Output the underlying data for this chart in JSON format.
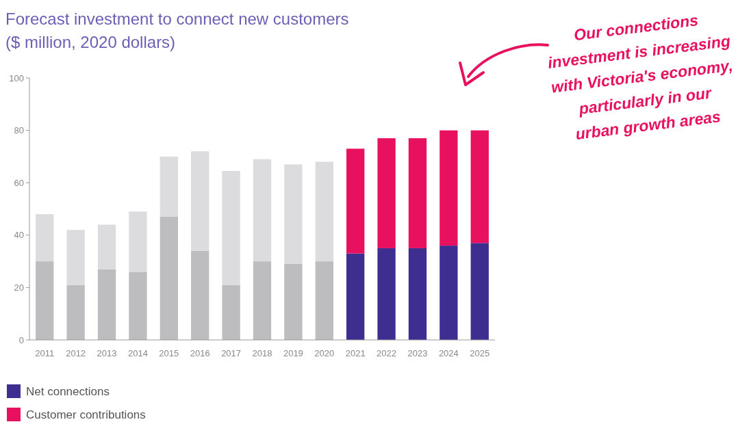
{
  "chart_data": {
    "type": "bar",
    "title": "Forecast investment to connect new customers",
    "subtitle": "($ million, 2020 dollars)",
    "categories": [
      "2011",
      "2012",
      "2013",
      "2014",
      "2015",
      "2016",
      "2017",
      "2018",
      "2019",
      "2020",
      "2021",
      "2022",
      "2023",
      "2024",
      "2025"
    ],
    "stacked": true,
    "series": [
      {
        "name": "Net connections",
        "color": "#3d2e8f",
        "values": [
          30,
          21,
          27,
          26,
          47,
          34,
          21,
          30,
          29,
          30,
          33,
          35,
          35,
          36,
          37
        ],
        "colors": [
          "#bdbdbf",
          "#bdbdbf",
          "#bdbdbf",
          "#bdbdbf",
          "#bdbdbf",
          "#bdbdbf",
          "#bdbdbf",
          "#bdbdbf",
          "#bdbdbf",
          "#bdbdbf",
          "#3d2e8f",
          "#3d2e8f",
          "#3d2e8f",
          "#3d2e8f",
          "#3d2e8f"
        ]
      },
      {
        "name": "Customer contributions",
        "color": "#e8115f",
        "values": [
          18,
          21,
          17,
          23,
          23,
          38,
          43.5,
          39,
          38,
          38,
          40,
          42,
          42,
          44,
          43
        ],
        "colors": [
          "#dcdcde",
          "#dcdcde",
          "#dcdcde",
          "#dcdcde",
          "#dcdcde",
          "#dcdcde",
          "#dcdcde",
          "#dcdcde",
          "#dcdcde",
          "#dcdcde",
          "#e8115f",
          "#e8115f",
          "#e8115f",
          "#e8115f",
          "#e8115f"
        ]
      }
    ],
    "ylim": [
      0,
      100
    ],
    "yticks": [
      0,
      20,
      40,
      60,
      80,
      100
    ],
    "legend": "bottom left",
    "annotations": [
      "Our connections investment is increasing with Victoria's economy, particularly in our urban growth areas"
    ]
  }
}
